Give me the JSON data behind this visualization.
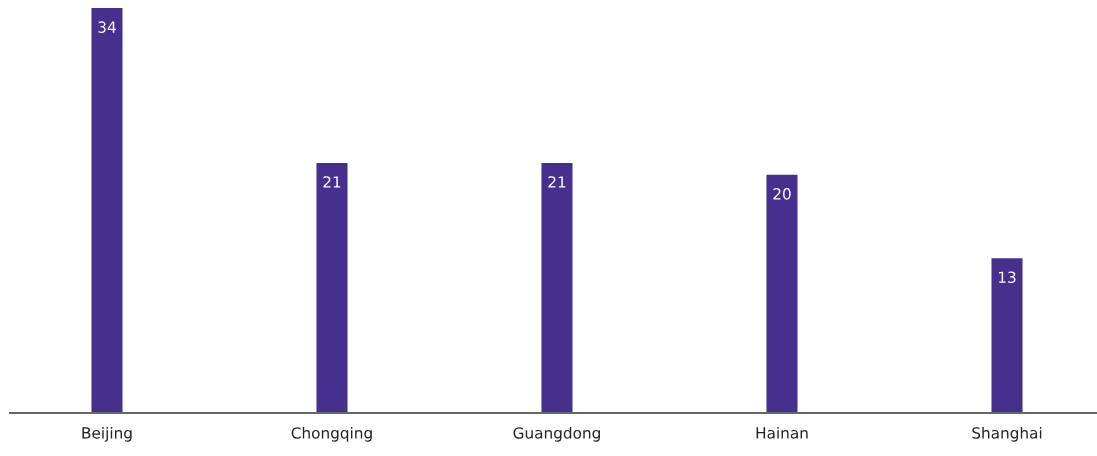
{
  "chart_data": {
    "type": "bar",
    "categories": [
      "Beijing",
      "Chongqing",
      "Guangdong",
      "Hainan",
      "Shanghai"
    ],
    "values": [
      34,
      21,
      21,
      20,
      13
    ],
    "color": "#472f8e",
    "tick_labels": "x",
    "data_labels": true,
    "grid": false,
    "legend": false
  }
}
